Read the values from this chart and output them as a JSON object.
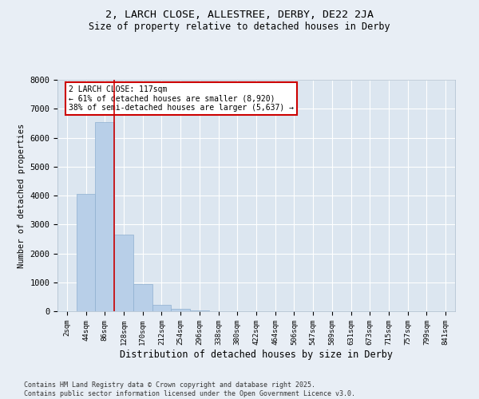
{
  "title1": "2, LARCH CLOSE, ALLESTREE, DERBY, DE22 2JA",
  "title2": "Size of property relative to detached houses in Derby",
  "xlabel": "Distribution of detached houses by size in Derby",
  "ylabel": "Number of detached properties",
  "categories": [
    "2sqm",
    "44sqm",
    "86sqm",
    "128sqm",
    "170sqm",
    "212sqm",
    "254sqm",
    "296sqm",
    "338sqm",
    "380sqm",
    "422sqm",
    "464sqm",
    "506sqm",
    "547sqm",
    "589sqm",
    "631sqm",
    "673sqm",
    "715sqm",
    "757sqm",
    "799sqm",
    "841sqm"
  ],
  "values": [
    0,
    4050,
    6550,
    2650,
    950,
    220,
    70,
    20,
    0,
    0,
    0,
    0,
    0,
    0,
    0,
    0,
    0,
    0,
    0,
    0,
    0
  ],
  "bar_color": "#b8cfe8",
  "bar_edge_color": "#8fb0d0",
  "highlight_line_color": "#cc0000",
  "annotation_text": "2 LARCH CLOSE: 117sqm\n← 61% of detached houses are smaller (8,920)\n38% of semi-detached houses are larger (5,637) →",
  "annotation_box_edge_color": "#cc0000",
  "annotation_box_facecolor": "white",
  "ylim": [
    0,
    8000
  ],
  "yticks": [
    0,
    1000,
    2000,
    3000,
    4000,
    5000,
    6000,
    7000,
    8000
  ],
  "bg_color": "#e8eef5",
  "plot_bg_color": "#dce6f0",
  "grid_color": "white",
  "footnote": "Contains HM Land Registry data © Crown copyright and database right 2025.\nContains public sector information licensed under the Open Government Licence v3.0."
}
